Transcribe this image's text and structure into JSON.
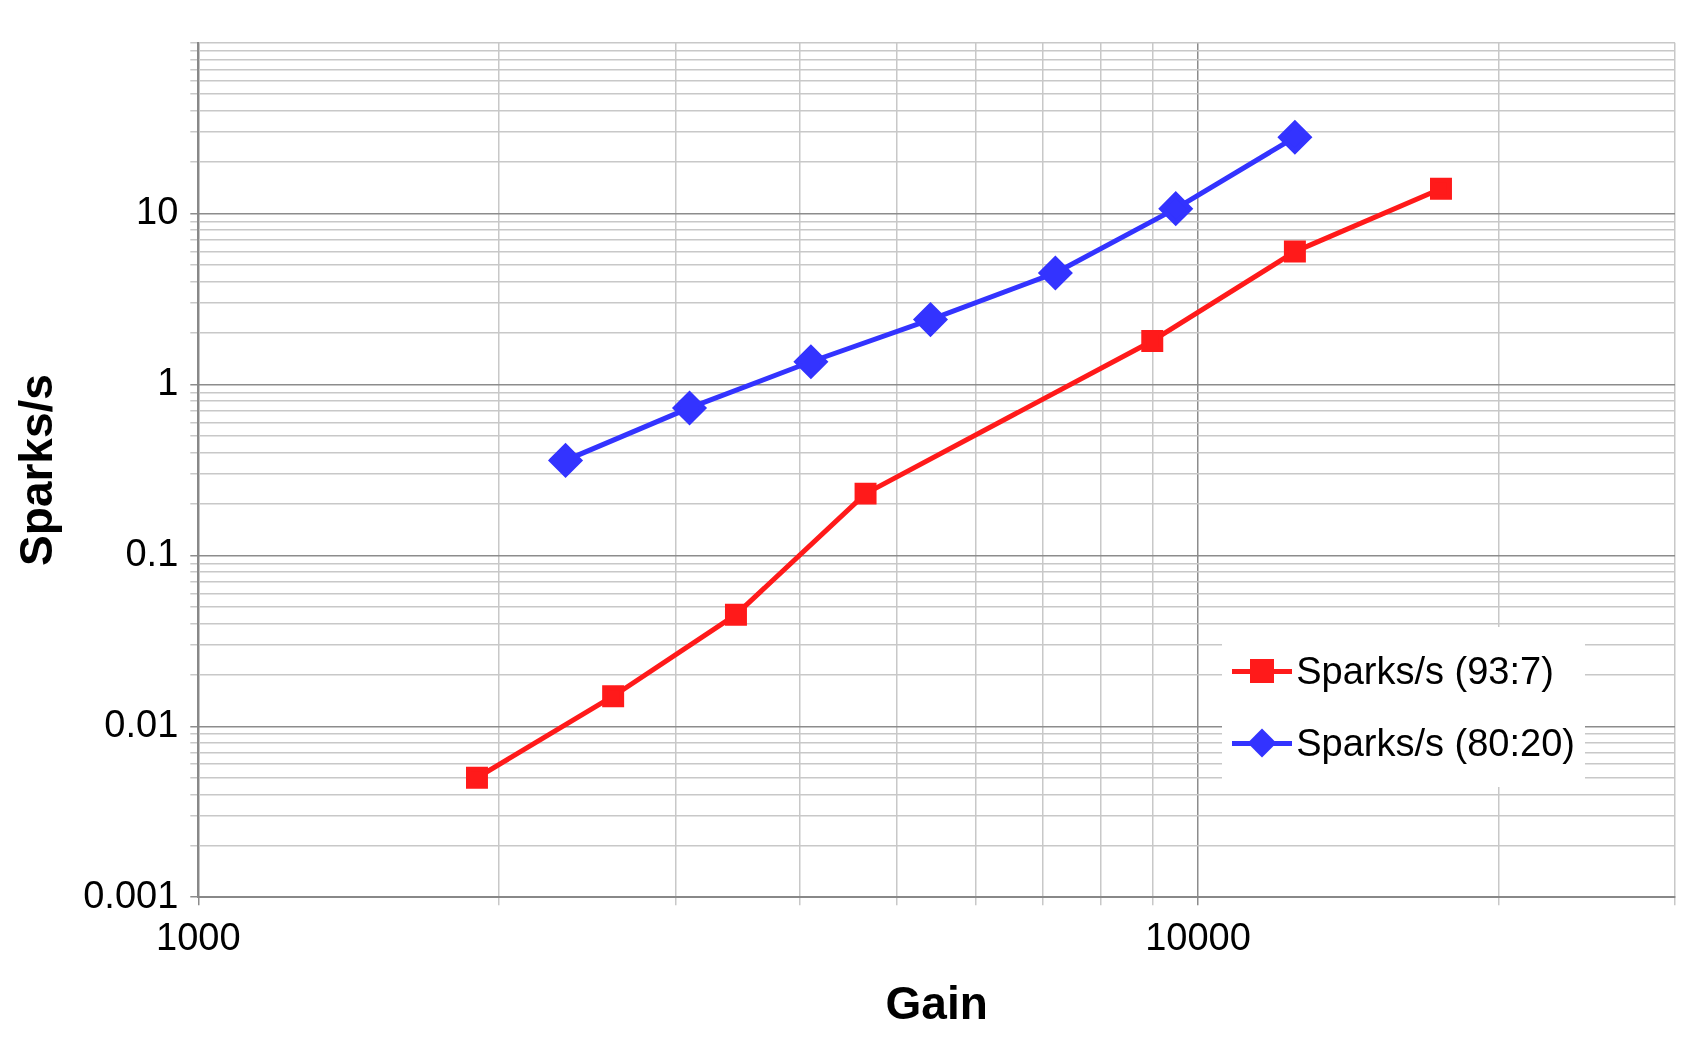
{
  "chart_data": {
    "type": "line",
    "xlabel": "Gain",
    "ylabel": "Sparks/s",
    "log": "xy",
    "grid": true,
    "legend": "bottom right",
    "line_style": "solid",
    "xlim": [
      1000,
      30000
    ],
    "xticks": [
      1000,
      {
        "value": 2000,
        "label": null
      },
      {
        "value": 3000,
        "label": null
      },
      {
        "value": 4000,
        "label": null
      },
      {
        "value": 5000,
        "label": null
      },
      {
        "value": 6000,
        "label": null
      },
      {
        "value": 7000,
        "label": null
      },
      {
        "value": 8000,
        "label": null
      },
      {
        "value": 9000,
        "label": null
      },
      10000,
      {
        "value": 20000,
        "label": null
      },
      {
        "value": 30000,
        "label": null
      }
    ],
    "ylim": [
      0.001,
      100
    ],
    "yticks": [
      0.001,
      {
        "value": 0.002,
        "label": null
      },
      {
        "value": 0.003,
        "label": null
      },
      {
        "value": 0.004,
        "label": null
      },
      {
        "value": 0.005,
        "label": null
      },
      {
        "value": 0.006,
        "label": null
      },
      {
        "value": 0.007,
        "label": null
      },
      {
        "value": 0.008,
        "label": null
      },
      {
        "value": 0.009,
        "label": null
      },
      0.01,
      {
        "value": 0.02,
        "label": null
      },
      {
        "value": 0.03,
        "label": null
      },
      {
        "value": 0.04,
        "label": null
      },
      {
        "value": 0.05,
        "label": null
      },
      {
        "value": 0.06,
        "label": null
      },
      {
        "value": 0.07,
        "label": null
      },
      {
        "value": 0.08,
        "label": null
      },
      {
        "value": 0.09,
        "label": null
      },
      0.1,
      {
        "value": 0.2,
        "label": null
      },
      {
        "value": 0.3,
        "label": null
      },
      {
        "value": 0.4,
        "label": null
      },
      {
        "value": 0.5,
        "label": null
      },
      {
        "value": 0.6,
        "label": null
      },
      {
        "value": 0.7,
        "label": null
      },
      {
        "value": 0.8,
        "label": null
      },
      {
        "value": 0.9,
        "label": null
      },
      1,
      {
        "value": 2,
        "label": null
      },
      {
        "value": 3,
        "label": null
      },
      {
        "value": 4,
        "label": null
      },
      {
        "value": 5,
        "label": null
      },
      {
        "value": 6,
        "label": null
      },
      {
        "value": 7,
        "label": null
      },
      {
        "value": 8,
        "label": null
      },
      {
        "value": 9,
        "label": null
      },
      10,
      {
        "value": 20,
        "label": null
      },
      {
        "value": 30,
        "label": null
      },
      {
        "value": 40,
        "label": null
      },
      {
        "value": 50,
        "label": null
      },
      {
        "value": 60,
        "label": null
      },
      {
        "value": 70,
        "label": null
      },
      {
        "value": 80,
        "label": null
      },
      {
        "value": 90,
        "label": null
      },
      {
        "value": 100,
        "label": null
      }
    ],
    "series": [
      {
        "name": "Sparks/s (93:7)",
        "color": "#ff1a1a",
        "marker": "square",
        "x": [
          1900,
          2600,
          3450,
          4650,
          9000,
          12500,
          17500
        ],
        "values": [
          0.005,
          0.015,
          0.045,
          0.23,
          1.8,
          6,
          14
        ]
      },
      {
        "name": "Sparks/s (80:20)",
        "color": "#3333ff",
        "marker": "diamond",
        "x": [
          2330,
          3100,
          4100,
          5400,
          7200,
          9500,
          12500
        ],
        "values": [
          0.36,
          0.73,
          1.36,
          2.4,
          4.5,
          10.7,
          28
        ]
      }
    ]
  }
}
